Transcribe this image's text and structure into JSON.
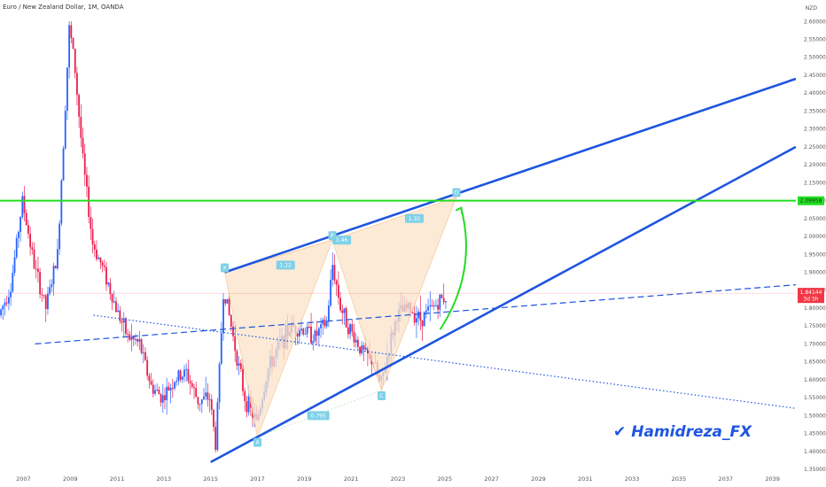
{
  "header": {
    "title": "Euro / New Zealand Dollar, 1M, OANDA",
    "currency": "NZD"
  },
  "watermark": {
    "author": "Hamidreza_FX",
    "check_icon": "check-icon"
  },
  "colors": {
    "bull": "#2962ff",
    "bear": "#e91e4d",
    "trend": "#1e55e0",
    "level": "#22dd22",
    "pattern_fill": "#fbe3c8",
    "pattern_stroke": "#f4c28a",
    "label_bg": "#7fd0e8",
    "arrow": "#22dd22",
    "price_tag": "#f23645"
  },
  "chart_data": {
    "type": "candlestick",
    "x_range": [
      2006.0,
      2040.0
    ],
    "y_range": [
      1.35,
      2.66
    ],
    "y_ticks": [
      "2.60000",
      "2.55000",
      "2.50000",
      "2.45000",
      "2.40000",
      "2.35000",
      "2.30000",
      "2.25000",
      "2.20000",
      "2.15000",
      "2.10000",
      "2.05000",
      "2.00000",
      "1.95000",
      "1.90000",
      "1.85000",
      "1.80000",
      "1.75000",
      "1.70000",
      "1.65000",
      "1.60000",
      "1.55000",
      "1.50000",
      "1.45000",
      "1.40000",
      "1.35000"
    ],
    "x_ticks": [
      "2007",
      "2009",
      "2011",
      "2013",
      "2015",
      "2017",
      "2019",
      "2021",
      "2023",
      "2025",
      "2027",
      "2029",
      "2031",
      "2033",
      "2035",
      "2037",
      "2039"
    ],
    "price_path": [
      [
        2006.0,
        1.78
      ],
      [
        2006.5,
        1.86
      ],
      [
        2007.0,
        2.1
      ],
      [
        2007.5,
        1.92
      ],
      [
        2008.0,
        1.8
      ],
      [
        2008.5,
        1.95
      ],
      [
        2009.0,
        2.58
      ],
      [
        2009.2,
        2.5
      ],
      [
        2009.6,
        2.2
      ],
      [
        2010.0,
        1.98
      ],
      [
        2010.5,
        1.9
      ],
      [
        2011.0,
        1.8
      ],
      [
        2011.5,
        1.72
      ],
      [
        2012.0,
        1.7
      ],
      [
        2012.5,
        1.58
      ],
      [
        2013.0,
        1.55
      ],
      [
        2013.5,
        1.6
      ],
      [
        2014.0,
        1.62
      ],
      [
        2014.5,
        1.54
      ],
      [
        2015.0,
        1.55
      ],
      [
        2015.25,
        1.42
      ],
      [
        2015.6,
        1.86
      ],
      [
        2016.0,
        1.72
      ],
      [
        2016.5,
        1.55
      ],
      [
        2017.0,
        1.48
      ],
      [
        2017.5,
        1.63
      ],
      [
        2018.0,
        1.7
      ],
      [
        2018.5,
        1.75
      ],
      [
        2019.0,
        1.74
      ],
      [
        2019.5,
        1.72
      ],
      [
        2020.0,
        1.76
      ],
      [
        2020.25,
        1.92
      ],
      [
        2020.6,
        1.8
      ],
      [
        2021.0,
        1.74
      ],
      [
        2021.5,
        1.68
      ],
      [
        2022.0,
        1.65
      ],
      [
        2022.3,
        1.58
      ],
      [
        2022.7,
        1.7
      ],
      [
        2023.0,
        1.78
      ],
      [
        2023.5,
        1.8
      ],
      [
        2024.0,
        1.77
      ],
      [
        2024.5,
        1.8
      ],
      [
        2025.0,
        1.83
      ]
    ],
    "series": [
      {
        "name": "",
        "kind": "line",
        "style": "solid",
        "points": [
          [
            2015.6,
            1.9
          ],
          [
            2040.0,
            2.44
          ]
        ]
      },
      {
        "name": "",
        "kind": "line",
        "style": "solid",
        "points": [
          [
            2015.0,
            1.37
          ],
          [
            2040.0,
            2.25
          ]
        ]
      },
      {
        "name": "",
        "kind": "line",
        "style": "dashed",
        "points": [
          [
            2007.5,
            1.7
          ],
          [
            2040.0,
            1.865
          ]
        ]
      },
      {
        "name": "",
        "kind": "line",
        "style": "dotted",
        "points": [
          [
            2010.0,
            1.78
          ],
          [
            2040.0,
            1.52
          ]
        ]
      },
      {
        "name": "",
        "kind": "hline",
        "style": "solid",
        "y": 2.1
      }
    ],
    "harmonic_pattern": {
      "points": [
        {
          "label": "X",
          "x": 2015.6,
          "y": 1.9
        },
        {
          "label": "A",
          "x": 2017.0,
          "y": 1.44
        },
        {
          "label": "B",
          "x": 2020.2,
          "y": 1.99
        },
        {
          "label": "C",
          "x": 2022.3,
          "y": 1.57
        },
        {
          "label": "D",
          "x": 2025.5,
          "y": 2.11
        }
      ],
      "ratios": [
        {
          "text": "1.22",
          "x": 2018.2,
          "y": 1.92
        },
        {
          "text": "0.795",
          "x": 2019.6,
          "y": 1.5
        },
        {
          "text": "1.46",
          "x": 2020.6,
          "y": 1.99
        },
        {
          "text": "1.35",
          "x": 2023.7,
          "y": 2.05
        }
      ]
    },
    "current_price": {
      "value": "1.84144",
      "time_left": "3d 5h"
    },
    "level_price": "2.09958",
    "arrow": {
      "from": [
        2024.8,
        1.74
      ],
      "ctrl": [
        2026.4,
        1.9
      ],
      "to": [
        2025.7,
        2.08
      ]
    }
  }
}
